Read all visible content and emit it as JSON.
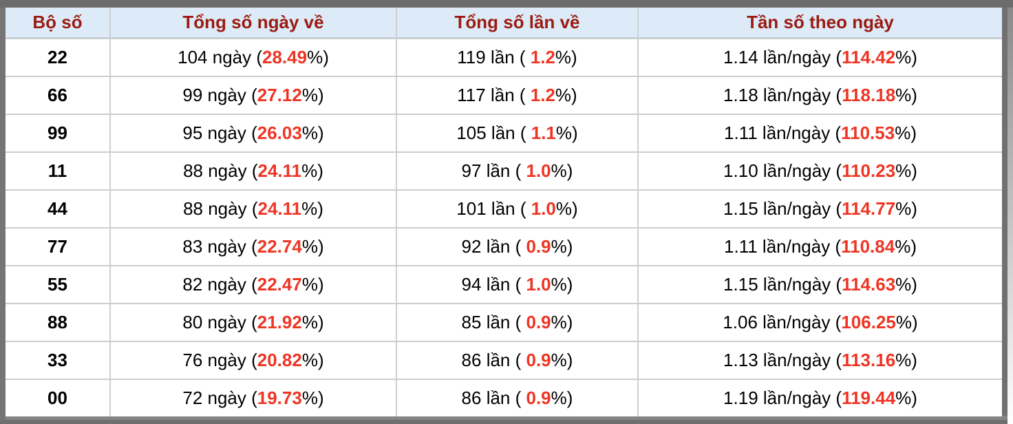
{
  "colors": {
    "header_bg": "#dcebf7",
    "header_text": "#9b1b12",
    "value_red": "#ee3524",
    "frame_gray": "#858585",
    "row_bg": "#ffffff",
    "border_gray": "#cdcdcd"
  },
  "table": {
    "headers": [
      "Bộ số",
      "Tổng số ngày về",
      "Tổng số lần về",
      "Tần số theo ngày"
    ],
    "rows": [
      {
        "pair": "22",
        "days": {
          "pre": "104 ngày (",
          "red": "28.49",
          "post": "%)"
        },
        "times": {
          "pre": "119 lần ( ",
          "red": "1.2",
          "post": "%)"
        },
        "freq": {
          "pre": "1.14 lần/ngày (",
          "red": "114.42",
          "post": "%)"
        }
      },
      {
        "pair": "66",
        "days": {
          "pre": "99 ngày (",
          "red": "27.12",
          "post": "%)"
        },
        "times": {
          "pre": "117 lần ( ",
          "red": "1.2",
          "post": "%)"
        },
        "freq": {
          "pre": "1.18 lần/ngày (",
          "red": "118.18",
          "post": "%)"
        }
      },
      {
        "pair": "99",
        "days": {
          "pre": "95 ngày (",
          "red": "26.03",
          "post": "%)"
        },
        "times": {
          "pre": "105 lần ( ",
          "red": "1.1",
          "post": "%)"
        },
        "freq": {
          "pre": "1.11 lần/ngày (",
          "red": "110.53",
          "post": "%)"
        }
      },
      {
        "pair": "11",
        "days": {
          "pre": "88 ngày (",
          "red": "24.11",
          "post": "%)"
        },
        "times": {
          "pre": "97 lần ( ",
          "red": "1.0",
          "post": "%)"
        },
        "freq": {
          "pre": "1.10 lần/ngày (",
          "red": "110.23",
          "post": "%)"
        }
      },
      {
        "pair": "44",
        "days": {
          "pre": "88 ngày (",
          "red": "24.11",
          "post": "%)"
        },
        "times": {
          "pre": "101 lần ( ",
          "red": "1.0",
          "post": "%)"
        },
        "freq": {
          "pre": "1.15 lần/ngày (",
          "red": "114.77",
          "post": "%)"
        }
      },
      {
        "pair": "77",
        "days": {
          "pre": "83 ngày (",
          "red": "22.74",
          "post": "%)"
        },
        "times": {
          "pre": "92 lần ( ",
          "red": "0.9",
          "post": "%)"
        },
        "freq": {
          "pre": "1.11 lần/ngày (",
          "red": "110.84",
          "post": "%)"
        }
      },
      {
        "pair": "55",
        "days": {
          "pre": "82 ngày (",
          "red": "22.47",
          "post": "%)"
        },
        "times": {
          "pre": "94 lần ( ",
          "red": "1.0",
          "post": "%)"
        },
        "freq": {
          "pre": "1.15 lần/ngày (",
          "red": "114.63",
          "post": "%)"
        }
      },
      {
        "pair": "88",
        "days": {
          "pre": "80 ngày (",
          "red": "21.92",
          "post": "%)"
        },
        "times": {
          "pre": "85 lần ( ",
          "red": "0.9",
          "post": "%)"
        },
        "freq": {
          "pre": "1.06 lần/ngày (",
          "red": "106.25",
          "post": "%)"
        }
      },
      {
        "pair": "33",
        "days": {
          "pre": "76 ngày (",
          "red": "20.82",
          "post": "%)"
        },
        "times": {
          "pre": "86 lần ( ",
          "red": "0.9",
          "post": "%)"
        },
        "freq": {
          "pre": "1.13 lần/ngày (",
          "red": "113.16",
          "post": "%)"
        }
      },
      {
        "pair": "00",
        "days": {
          "pre": "72 ngày (",
          "red": "19.73",
          "post": "%)"
        },
        "times": {
          "pre": "86 lần ( ",
          "red": "0.9",
          "post": "%)"
        },
        "freq": {
          "pre": "1.19 lần/ngày (",
          "red": "119.44",
          "post": "%)"
        }
      }
    ]
  }
}
